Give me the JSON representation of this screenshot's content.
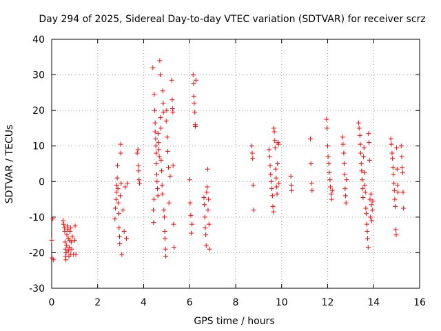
{
  "chart_data": {
    "type": "scatter",
    "title": "Day 294 of 2025, Sidereal Day-to-day VTEC variation (SDTVAR) for receiver scrz",
    "xlabel": "GPS time / hours",
    "ylabel": "SDTVAR / TECUs",
    "xlim": [
      0,
      16
    ],
    "ylim": [
      -30,
      40
    ],
    "xticks": [
      0,
      2,
      4,
      6,
      8,
      10,
      12,
      14,
      16
    ],
    "yticks": [
      -30,
      -20,
      -10,
      0,
      10,
      20,
      30,
      40
    ],
    "grid": true,
    "marker": "+",
    "color": "#ff0000",
    "series": [
      {
        "name": "SDTVAR",
        "points": [
          [
            0.0,
            -16.5
          ],
          [
            0.02,
            -21.5
          ],
          [
            0.05,
            -10.5
          ],
          [
            0.08,
            -22.0
          ],
          [
            0.5,
            -11.0
          ],
          [
            0.52,
            -12.0
          ],
          [
            0.55,
            -13.0
          ],
          [
            0.57,
            -14.0
          ],
          [
            0.58,
            -17.0
          ],
          [
            0.6,
            -19.0
          ],
          [
            0.6,
            -21.0
          ],
          [
            0.62,
            -22.0
          ],
          [
            0.63,
            -20.0
          ],
          [
            0.65,
            -18.0
          ],
          [
            0.66,
            -15.0
          ],
          [
            0.68,
            -12.5
          ],
          [
            0.7,
            -13.5
          ],
          [
            0.72,
            -16.0
          ],
          [
            0.73,
            -19.5
          ],
          [
            0.75,
            -21.0
          ],
          [
            0.77,
            -18.5
          ],
          [
            0.78,
            -16.5
          ],
          [
            0.8,
            -14.0
          ],
          [
            0.82,
            -13.0
          ],
          [
            0.83,
            -20.5
          ],
          [
            0.85,
            -17.0
          ],
          [
            0.87,
            -19.0
          ],
          [
            0.9,
            -15.5
          ],
          [
            0.95,
            -20.5
          ],
          [
            1.0,
            -16.5
          ],
          [
            1.02,
            -12.5
          ],
          [
            1.05,
            -20.5
          ],
          [
            2.75,
            -10.5
          ],
          [
            2.77,
            -7.5
          ],
          [
            2.8,
            -5.0
          ],
          [
            2.82,
            -3.0
          ],
          [
            2.83,
            -1.0
          ],
          [
            2.85,
            1.0
          ],
          [
            2.86,
            4.5
          ],
          [
            2.88,
            -2.0
          ],
          [
            2.9,
            -6.0
          ],
          [
            2.92,
            -9.0
          ],
          [
            2.93,
            -13.0
          ],
          [
            2.95,
            -15.5
          ],
          [
            2.96,
            -17.5
          ],
          [
            2.98,
            -4.0
          ],
          [
            3.0,
            8.0
          ],
          [
            3.0,
            10.5
          ],
          [
            3.02,
            -0.5
          ],
          [
            3.05,
            -20.5
          ],
          [
            3.1,
            -8.0
          ],
          [
            3.15,
            -14.0
          ],
          [
            3.2,
            -1.5
          ],
          [
            3.25,
            -16.0
          ],
          [
            3.3,
            -0.5
          ],
          [
            3.72,
            8.0
          ],
          [
            3.75,
            9.0
          ],
          [
            3.77,
            4.5
          ],
          [
            3.78,
            3.0
          ],
          [
            3.8,
            0.5
          ],
          [
            3.82,
            -0.5
          ],
          [
            4.4,
            32.0
          ],
          [
            4.42,
            -8.0
          ],
          [
            4.43,
            -11.5
          ],
          [
            4.45,
            -5.0
          ],
          [
            4.46,
            24.5
          ],
          [
            4.48,
            20.0
          ],
          [
            4.5,
            16.5
          ],
          [
            4.5,
            14.0
          ],
          [
            4.52,
            12.0
          ],
          [
            4.53,
            10.0
          ],
          [
            4.55,
            8.0
          ],
          [
            4.55,
            5.0
          ],
          [
            4.57,
            2.0
          ],
          [
            4.58,
            0.0
          ],
          [
            4.6,
            -2.0
          ],
          [
            4.62,
            -4.0
          ],
          [
            4.63,
            13.5
          ],
          [
            4.65,
            11.0
          ],
          [
            4.66,
            9.0
          ],
          [
            4.68,
            7.0
          ],
          [
            4.7,
            34.0
          ],
          [
            4.72,
            30.0
          ],
          [
            4.73,
            18.0
          ],
          [
            4.75,
            15.0
          ],
          [
            4.76,
            6.0
          ],
          [
            4.78,
            3.0
          ],
          [
            4.8,
            -1.0
          ],
          [
            4.82,
            -3.5
          ],
          [
            4.83,
            25.5
          ],
          [
            4.85,
            22.0
          ],
          [
            4.86,
            19.5
          ],
          [
            4.88,
            -8.0
          ],
          [
            4.9,
            -10.0
          ],
          [
            4.92,
            -14.0
          ],
          [
            4.93,
            -16.0
          ],
          [
            4.95,
            -19.0
          ],
          [
            4.96,
            -21.0
          ],
          [
            4.98,
            17.0
          ],
          [
            5.0,
            20.0
          ],
          [
            5.02,
            12.5
          ],
          [
            5.05,
            8.5
          ],
          [
            5.08,
            4.0
          ],
          [
            5.1,
            -6.0
          ],
          [
            5.15,
            1.5
          ],
          [
            5.22,
            28.5
          ],
          [
            5.24,
            23.0
          ],
          [
            5.25,
            20.5
          ],
          [
            5.27,
            19.5
          ],
          [
            5.28,
            4.5
          ],
          [
            5.3,
            -12.0
          ],
          [
            5.32,
            -18.5
          ],
          [
            6.0,
            0.5
          ],
          [
            6.02,
            -6.0
          ],
          [
            6.05,
            -9.5
          ],
          [
            6.07,
            -14.5
          ],
          [
            6.1,
            -12.0
          ],
          [
            6.15,
            30.0
          ],
          [
            6.17,
            27.5
          ],
          [
            6.18,
            24.0
          ],
          [
            6.2,
            22.0
          ],
          [
            6.22,
            19.5
          ],
          [
            6.24,
            16.0
          ],
          [
            6.25,
            15.5
          ],
          [
            6.27,
            28.5
          ],
          [
            6.62,
            -4.5
          ],
          [
            6.64,
            -6.5
          ],
          [
            6.66,
            -10.0
          ],
          [
            6.68,
            -13.0
          ],
          [
            6.7,
            -15.0
          ],
          [
            6.72,
            -18.0
          ],
          [
            6.74,
            -3.0
          ],
          [
            6.76,
            -1.5
          ],
          [
            6.78,
            3.5
          ],
          [
            6.8,
            -8.0
          ],
          [
            6.82,
            -5.0
          ],
          [
            6.84,
            -12.0
          ],
          [
            6.86,
            -19.0
          ],
          [
            8.7,
            10.0
          ],
          [
            8.72,
            8.0
          ],
          [
            8.74,
            6.5
          ],
          [
            8.76,
            -1.0
          ],
          [
            8.78,
            -8.0
          ],
          [
            9.45,
            9.0
          ],
          [
            9.47,
            7.0
          ],
          [
            9.5,
            4.5
          ],
          [
            9.52,
            2.0
          ],
          [
            9.55,
            0.0
          ],
          [
            9.57,
            -2.0
          ],
          [
            9.6,
            -4.0
          ],
          [
            9.62,
            -7.0
          ],
          [
            9.64,
            -8.5
          ],
          [
            9.66,
            15.0
          ],
          [
            9.68,
            14.0
          ],
          [
            9.7,
            11.5
          ],
          [
            9.72,
            9.5
          ],
          [
            9.74,
            3.5
          ],
          [
            9.76,
            1.0
          ],
          [
            9.78,
            -1.5
          ],
          [
            9.8,
            -3.5
          ],
          [
            9.82,
            5.0
          ],
          [
            9.84,
            11.0
          ],
          [
            9.86,
            10.5
          ],
          [
            9.88,
            -0.5
          ],
          [
            10.4,
            1.5
          ],
          [
            10.42,
            -1.0
          ],
          [
            10.44,
            -2.5
          ],
          [
            11.25,
            12.0
          ],
          [
            11.27,
            5.0
          ],
          [
            11.3,
            -0.5
          ],
          [
            11.32,
            -2.5
          ],
          [
            11.95,
            17.5
          ],
          [
            11.97,
            15.0
          ],
          [
            12.0,
            10.0
          ],
          [
            12.02,
            7.0
          ],
          [
            12.05,
            5.0
          ],
          [
            12.07,
            2.5
          ],
          [
            12.1,
            0.5
          ],
          [
            12.12,
            -1.5
          ],
          [
            12.15,
            -3.5
          ],
          [
            12.17,
            -5.0
          ],
          [
            12.2,
            -2.5
          ],
          [
            12.65,
            12.5
          ],
          [
            12.67,
            10.5
          ],
          [
            12.7,
            8.0
          ],
          [
            12.72,
            5.0
          ],
          [
            12.74,
            2.0
          ],
          [
            12.76,
            -2.0
          ],
          [
            12.78,
            -4.0
          ],
          [
            12.8,
            -6.0
          ],
          [
            12.82,
            0.5
          ],
          [
            13.35,
            16.5
          ],
          [
            13.37,
            15.0
          ],
          [
            13.4,
            13.0
          ],
          [
            13.42,
            10.5
          ],
          [
            13.44,
            8.0
          ],
          [
            13.46,
            5.0
          ],
          [
            13.48,
            3.0
          ],
          [
            13.5,
            0.5
          ],
          [
            13.52,
            -2.0
          ],
          [
            13.54,
            -4.5
          ],
          [
            13.56,
            7.0
          ],
          [
            13.58,
            9.5
          ],
          [
            13.6,
            2.5
          ],
          [
            13.62,
            -1.0
          ],
          [
            13.64,
            -3.0
          ],
          [
            13.66,
            -7.5
          ],
          [
            13.68,
            -9.0
          ],
          [
            13.7,
            -12.0
          ],
          [
            13.72,
            -14.0
          ],
          [
            13.74,
            -16.0
          ],
          [
            13.76,
            -18.5
          ],
          [
            13.78,
            13.5
          ],
          [
            13.8,
            11.0
          ],
          [
            13.82,
            6.0
          ],
          [
            13.84,
            -5.0
          ],
          [
            13.86,
            -10.0
          ],
          [
            13.88,
            -3.5
          ],
          [
            13.9,
            -6.5
          ],
          [
            13.92,
            -11.0
          ],
          [
            13.94,
            -8.0
          ],
          [
            13.96,
            -5.5
          ],
          [
            14.75,
            12.0
          ],
          [
            14.77,
            10.5
          ],
          [
            14.8,
            8.0
          ],
          [
            14.82,
            6.5
          ],
          [
            14.84,
            4.0
          ],
          [
            14.86,
            2.0
          ],
          [
            14.88,
            -0.5
          ],
          [
            14.9,
            -2.5
          ],
          [
            14.92,
            -5.0
          ],
          [
            14.94,
            -7.0
          ],
          [
            14.96,
            -13.5
          ],
          [
            14.98,
            -15.0
          ],
          [
            15.0,
            9.5
          ],
          [
            15.02,
            3.5
          ],
          [
            15.04,
            -1.0
          ],
          [
            15.06,
            -3.0
          ],
          [
            15.2,
            10.0
          ],
          [
            15.22,
            7.0
          ],
          [
            15.24,
            4.0
          ],
          [
            15.26,
            2.5
          ],
          [
            15.28,
            -3.0
          ],
          [
            15.3,
            -7.5
          ]
        ]
      }
    ]
  }
}
